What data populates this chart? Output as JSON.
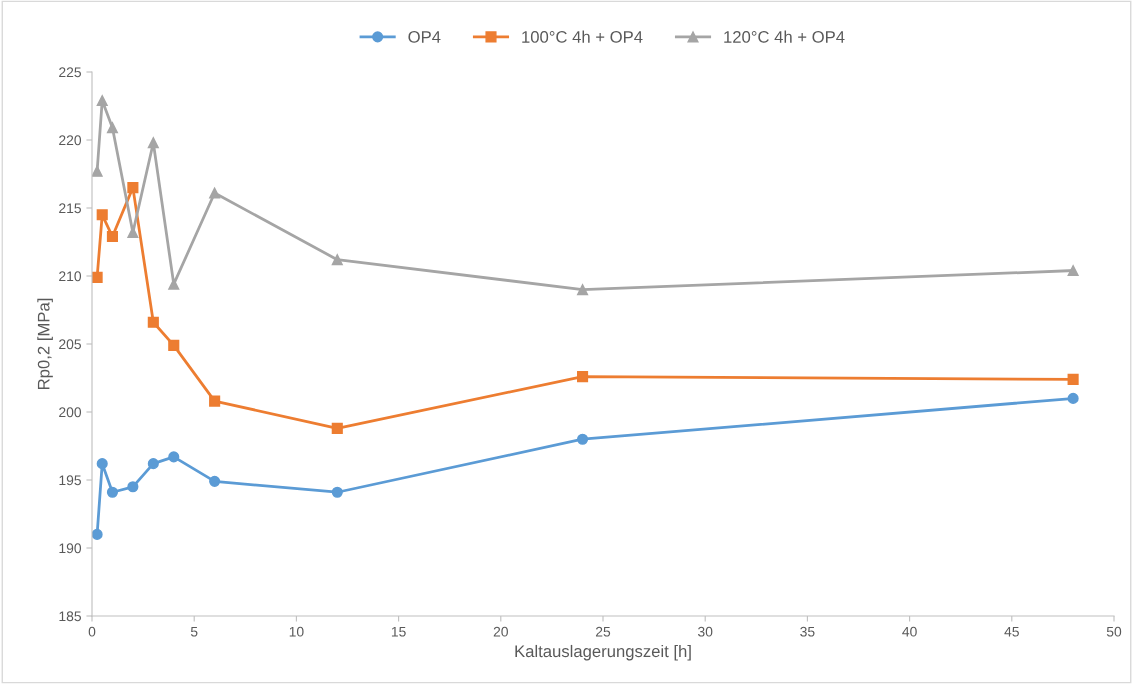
{
  "chart_data": {
    "type": "line",
    "xlabel": "Kaltauslagerungszeit [h]",
    "ylabel": "Rp0,2 [MPa]",
    "x": [
      0.25,
      0.5,
      1,
      2,
      3,
      4,
      6,
      12,
      24,
      48
    ],
    "series": [
      {
        "name": "OP4",
        "color": "#5b9bd5",
        "marker": "circle",
        "values": [
          191.0,
          196.2,
          194.1,
          194.5,
          196.2,
          196.7,
          194.9,
          194.1,
          198.0,
          201.0
        ]
      },
      {
        "name": "100°C 4h + OP4",
        "color": "#ed7d31",
        "marker": "square",
        "values": [
          209.9,
          214.5,
          212.9,
          216.5,
          206.6,
          204.9,
          200.8,
          198.8,
          202.6,
          202.4
        ]
      },
      {
        "name": "120°C 4h + OP4",
        "color": "#a5a5a5",
        "marker": "triangle",
        "values": [
          217.7,
          222.9,
          220.9,
          213.2,
          219.8,
          209.4,
          216.1,
          211.2,
          209.0,
          210.4
        ]
      }
    ],
    "xlim": [
      0,
      50
    ],
    "xticks": [
      0,
      5,
      10,
      15,
      20,
      25,
      30,
      35,
      40,
      45,
      50
    ],
    "ylim": [
      185,
      225
    ],
    "yticks": [
      185,
      190,
      195,
      200,
      205,
      210,
      215,
      220,
      225
    ],
    "grid": false,
    "legend": "top",
    "line_style": "solid"
  }
}
